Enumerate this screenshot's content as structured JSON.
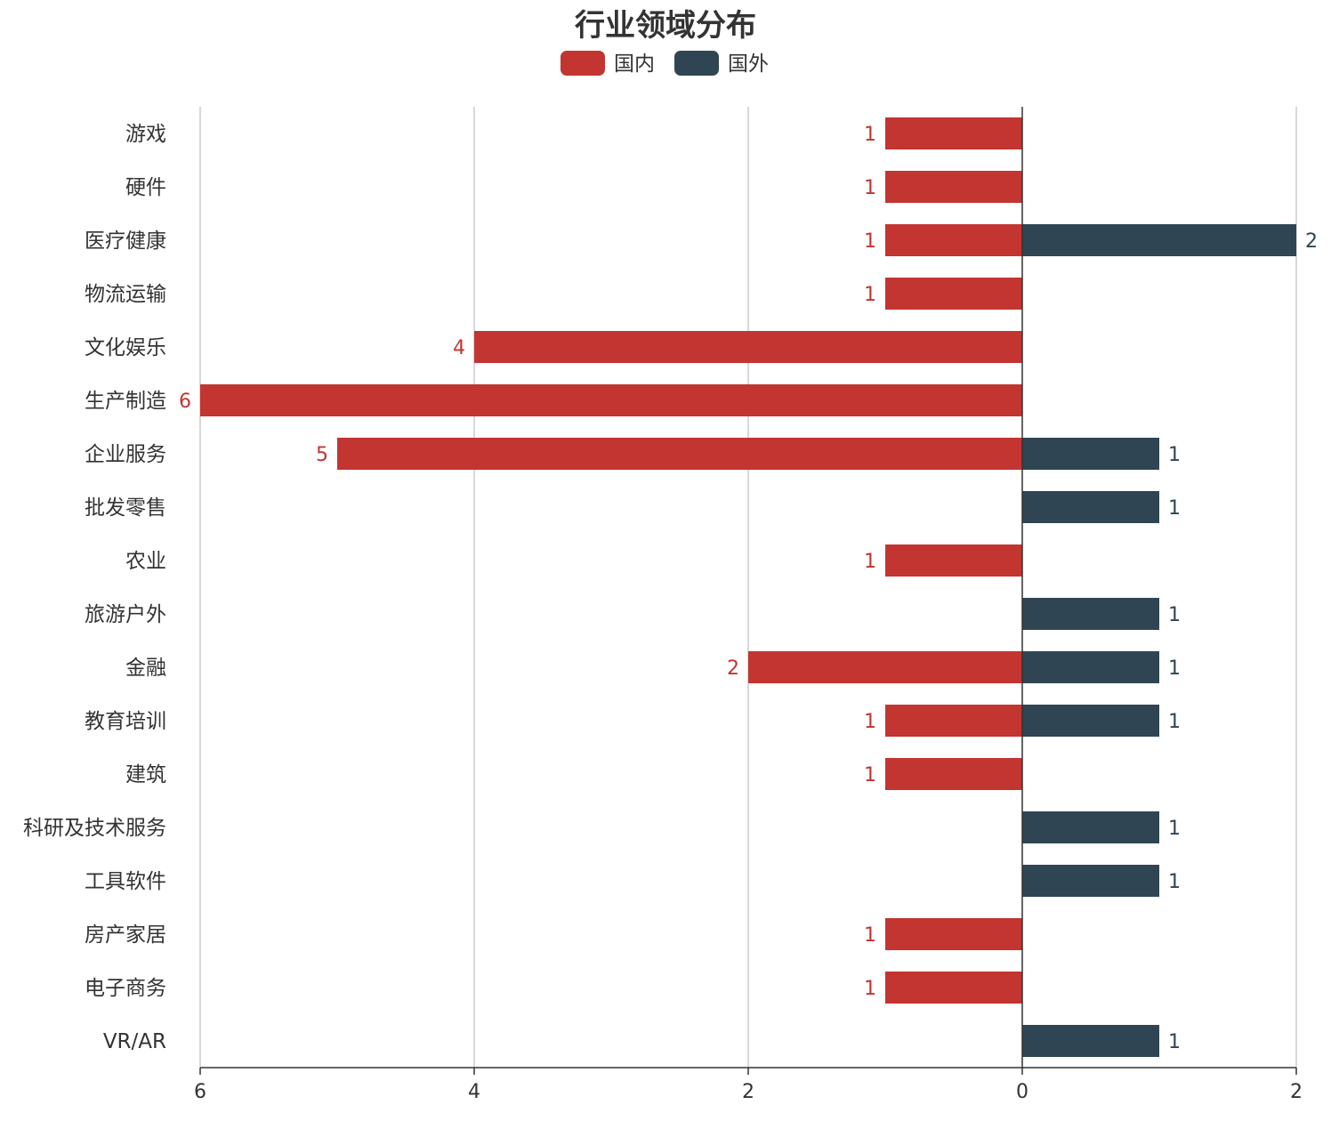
{
  "chart_data": {
    "type": "bar",
    "orientation": "horizontal",
    "title": "行业领域分布",
    "legend_placement": "top-center",
    "grid": true,
    "categories": [
      "游戏",
      "硬件",
      "医疗健康",
      "物流运输",
      "文化娱乐",
      "生产制造",
      "企业服务",
      "批发零售",
      "农业",
      "旅游户外",
      "金融",
      "教育培训",
      "建筑",
      "科研及技术服务",
      "工具软件",
      "房产家居",
      "电子商务",
      "VR/AR"
    ],
    "series": [
      {
        "name": "国内",
        "color": "#c23531",
        "direction": "left",
        "values": [
          1,
          1,
          1,
          1,
          4,
          6,
          5,
          null,
          1,
          null,
          2,
          1,
          1,
          null,
          null,
          1,
          1,
          null
        ]
      },
      {
        "name": "国外",
        "color": "#2f4554",
        "direction": "right",
        "values": [
          null,
          null,
          2,
          null,
          null,
          null,
          1,
          1,
          null,
          1,
          1,
          1,
          null,
          1,
          1,
          null,
          null,
          1
        ]
      }
    ],
    "xlim_left": [
      0,
      6
    ],
    "xlim_right": [
      0,
      2
    ],
    "x_ticks": [
      "6",
      "4",
      "2",
      "0",
      "2"
    ]
  }
}
